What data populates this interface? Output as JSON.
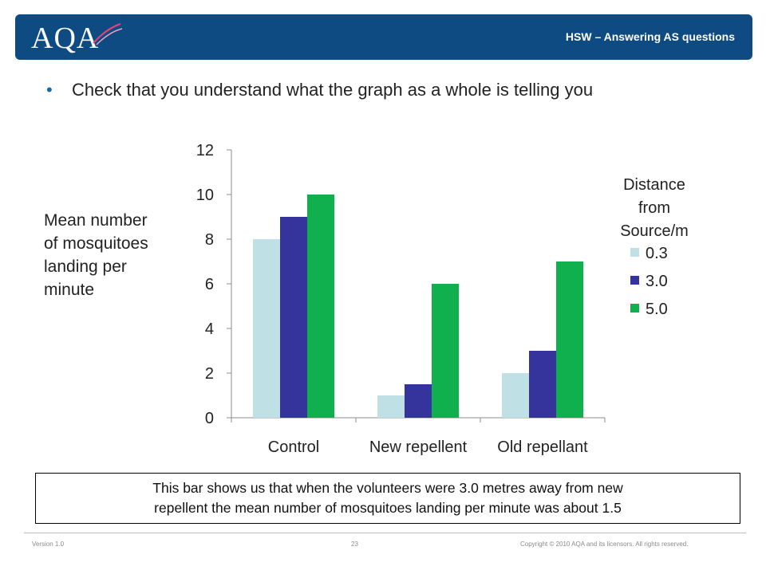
{
  "header": {
    "logo_text": "AQA",
    "title": "HSW – Answering AS questions",
    "brand_color": "#0e4b82"
  },
  "bullet": {
    "symbol": "•",
    "text": "Check that you understand what the graph as a whole is telling you"
  },
  "ylabel_lines": [
    "Mean number",
    "of mosquitoes",
    "landing per",
    "minute"
  ],
  "legend": {
    "title_lines": [
      "Distance",
      "from",
      "Source/m"
    ]
  },
  "callout": {
    "line1": "This bar shows us that when the volunteers were 3.0 metres away from new",
    "line2": "repellent the mean number of mosquitoes landing per minute was about 1.5"
  },
  "footer": {
    "version": "Version 1.0",
    "page": "23",
    "copyright": "Copyright © 2010 AQA and its licensors. All rights reserved."
  },
  "chart_data": {
    "type": "bar",
    "categories": [
      "Control",
      "New repellent",
      "Old repellant"
    ],
    "series": [
      {
        "name": "0.3",
        "values": [
          8,
          1,
          2
        ],
        "color": "#bfe0e4"
      },
      {
        "name": "3.0",
        "values": [
          9,
          1.5,
          3
        ],
        "color": "#35349c"
      },
      {
        "name": "5.0",
        "values": [
          10,
          6,
          7
        ],
        "color": "#11b04f"
      }
    ],
    "yticks": [
      0,
      2,
      4,
      6,
      8,
      10,
      12
    ],
    "ylim": [
      0,
      12
    ],
    "legend_placement": "right",
    "grid": false
  }
}
